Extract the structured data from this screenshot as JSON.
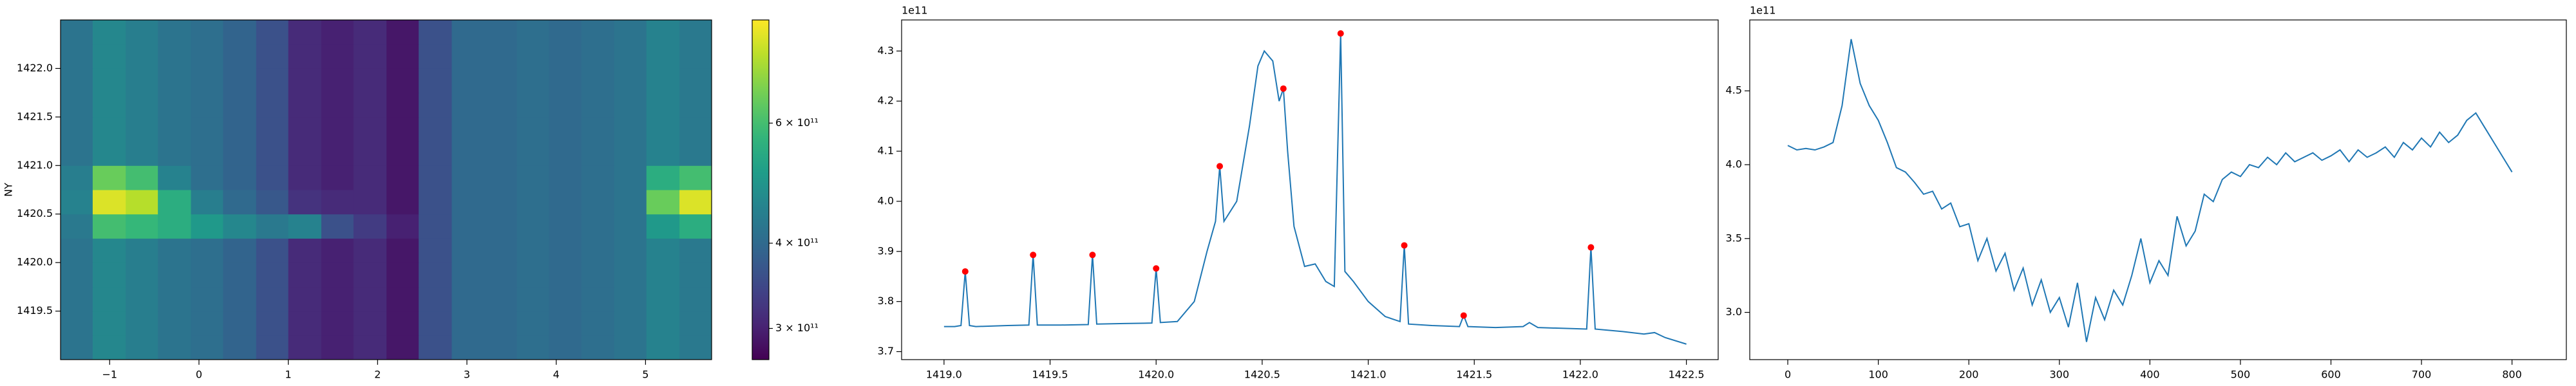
{
  "chart_data": [
    {
      "type": "heatmap",
      "ylabel": "NY",
      "x_edges": [
        -1.55,
        -1.19,
        -0.82,
        -0.46,
        -0.09,
        0.27,
        0.64,
        1.0,
        1.37,
        1.73,
        2.1,
        2.46,
        2.83,
        3.19,
        3.56,
        3.92,
        4.28,
        4.65,
        5.01,
        5.38,
        5.74
      ],
      "y_edges": [
        1419.0,
        1419.25,
        1419.5,
        1419.75,
        1420.0,
        1420.25,
        1420.5,
        1420.75,
        1421.0,
        1421.25,
        1421.5,
        1421.75,
        1422.0,
        1422.25,
        1422.5
      ],
      "z": [
        [
          420000000000.0,
          460000000000.0,
          440000000000.0,
          420000000000.0,
          410000000000.0,
          390000000000.0,
          360000000000.0,
          310000000000.0,
          300000000000.0,
          310000000000.0,
          290000000000.0,
          360000000000.0,
          400000000000.0,
          400000000000.0,
          410000000000.0,
          400000000000.0,
          410000000000.0,
          420000000000.0,
          450000000000.0,
          430000000000.0
        ],
        [
          420000000000.0,
          460000000000.0,
          440000000000.0,
          420000000000.0,
          410000000000.0,
          390000000000.0,
          360000000000.0,
          310000000000.0,
          300000000000.0,
          310000000000.0,
          290000000000.0,
          360000000000.0,
          400000000000.0,
          400000000000.0,
          410000000000.0,
          400000000000.0,
          410000000000.0,
          420000000000.0,
          450000000000.0,
          430000000000.0
        ],
        [
          420000000000.0,
          460000000000.0,
          440000000000.0,
          420000000000.0,
          410000000000.0,
          390000000000.0,
          360000000000.0,
          310000000000.0,
          300000000000.0,
          310000000000.0,
          290000000000.0,
          360000000000.0,
          400000000000.0,
          400000000000.0,
          410000000000.0,
          400000000000.0,
          410000000000.0,
          420000000000.0,
          450000000000.0,
          430000000000.0
        ],
        [
          420000000000.0,
          460000000000.0,
          440000000000.0,
          420000000000.0,
          410000000000.0,
          390000000000.0,
          360000000000.0,
          310000000000.0,
          300000000000.0,
          310000000000.0,
          290000000000.0,
          360000000000.0,
          400000000000.0,
          400000000000.0,
          410000000000.0,
          400000000000.0,
          410000000000.0,
          420000000000.0,
          450000000000.0,
          430000000000.0
        ],
        [
          420000000000.0,
          460000000000.0,
          440000000000.0,
          420000000000.0,
          410000000000.0,
          390000000000.0,
          360000000000.0,
          310000000000.0,
          300000000000.0,
          310000000000.0,
          290000000000.0,
          360000000000.0,
          400000000000.0,
          400000000000.0,
          410000000000.0,
          400000000000.0,
          410000000000.0,
          420000000000.0,
          450000000000.0,
          430000000000.0
        ],
        [
          430000000000.0,
          600000000000.0,
          580000000000.0,
          550000000000.0,
          500000000000.0,
          460000000000.0,
          430000000000.0,
          450000000000.0,
          360000000000.0,
          330000000000.0,
          300000000000.0,
          360000000000.0,
          400000000000.0,
          400000000000.0,
          410000000000.0,
          400000000000.0,
          410000000000.0,
          420000000000.0,
          500000000000.0,
          550000000000.0
        ],
        [
          450000000000.0,
          800000000000.0,
          750000000000.0,
          550000000000.0,
          440000000000.0,
          400000000000.0,
          370000000000.0,
          320000000000.0,
          310000000000.0,
          310000000000.0,
          290000000000.0,
          360000000000.0,
          400000000000.0,
          400000000000.0,
          410000000000.0,
          400000000000.0,
          410000000000.0,
          420000000000.0,
          650000000000.0,
          800000000000.0
        ],
        [
          440000000000.0,
          650000000000.0,
          600000000000.0,
          450000000000.0,
          410000000000.0,
          390000000000.0,
          360000000000.0,
          310000000000.0,
          300000000000.0,
          310000000000.0,
          290000000000.0,
          360000000000.0,
          400000000000.0,
          400000000000.0,
          410000000000.0,
          400000000000.0,
          410000000000.0,
          420000000000.0,
          550000000000.0,
          600000000000.0
        ],
        [
          420000000000.0,
          460000000000.0,
          440000000000.0,
          420000000000.0,
          410000000000.0,
          390000000000.0,
          360000000000.0,
          310000000000.0,
          300000000000.0,
          310000000000.0,
          290000000000.0,
          360000000000.0,
          400000000000.0,
          400000000000.0,
          410000000000.0,
          400000000000.0,
          410000000000.0,
          420000000000.0,
          450000000000.0,
          430000000000.0
        ],
        [
          420000000000.0,
          460000000000.0,
          440000000000.0,
          420000000000.0,
          410000000000.0,
          390000000000.0,
          360000000000.0,
          310000000000.0,
          300000000000.0,
          310000000000.0,
          290000000000.0,
          360000000000.0,
          400000000000.0,
          400000000000.0,
          410000000000.0,
          400000000000.0,
          410000000000.0,
          420000000000.0,
          450000000000.0,
          430000000000.0
        ],
        [
          420000000000.0,
          460000000000.0,
          440000000000.0,
          420000000000.0,
          410000000000.0,
          390000000000.0,
          360000000000.0,
          310000000000.0,
          300000000000.0,
          310000000000.0,
          290000000000.0,
          360000000000.0,
          400000000000.0,
          400000000000.0,
          410000000000.0,
          400000000000.0,
          410000000000.0,
          420000000000.0,
          450000000000.0,
          430000000000.0
        ],
        [
          420000000000.0,
          460000000000.0,
          440000000000.0,
          420000000000.0,
          410000000000.0,
          390000000000.0,
          360000000000.0,
          310000000000.0,
          300000000000.0,
          310000000000.0,
          290000000000.0,
          360000000000.0,
          400000000000.0,
          400000000000.0,
          410000000000.0,
          400000000000.0,
          410000000000.0,
          420000000000.0,
          450000000000.0,
          430000000000.0
        ],
        [
          420000000000.0,
          460000000000.0,
          440000000000.0,
          420000000000.0,
          410000000000.0,
          390000000000.0,
          360000000000.0,
          310000000000.0,
          300000000000.0,
          310000000000.0,
          290000000000.0,
          360000000000.0,
          400000000000.0,
          400000000000.0,
          410000000000.0,
          400000000000.0,
          410000000000.0,
          420000000000.0,
          450000000000.0,
          430000000000.0
        ],
        [
          420000000000.0,
          460000000000.0,
          440000000000.0,
          420000000000.0,
          410000000000.0,
          390000000000.0,
          360000000000.0,
          310000000000.0,
          300000000000.0,
          310000000000.0,
          290000000000.0,
          360000000000.0,
          400000000000.0,
          400000000000.0,
          410000000000.0,
          400000000000.0,
          410000000000.0,
          420000000000.0,
          450000000000.0,
          430000000000.0
        ]
      ],
      "colormap": "viridis",
      "xlim": [
        -1.55,
        5.74
      ],
      "ylim": [
        1419.0,
        1422.5
      ],
      "xticks": [
        {
          "value": -1,
          "label": "−1"
        },
        0,
        1,
        2,
        3,
        4,
        5
      ],
      "yticks": [
        1419.5,
        {
          "value": 1420,
          "label": "1420.0"
        },
        1420.5,
        {
          "value": 1421,
          "label": "1421.0"
        },
        1421.5,
        {
          "value": 1422,
          "label": "1422.0"
        }
      ],
      "colorbar": {
        "scale": "log",
        "lim": [
          270000000000.0,
          850000000000.0
        ],
        "ticks": [
          {
            "value": 300000000000.0,
            "label": "3 × 10¹¹"
          },
          {
            "value": 400000000000.0,
            "label": "4 × 10¹¹"
          },
          {
            "value": 600000000000.0,
            "label": "6 × 10¹¹"
          }
        ]
      }
    },
    {
      "type": "line",
      "y_offset_label": "1e11",
      "series": [
        {
          "color": "#1f77b4",
          "marker": "none",
          "x": [
            1419.0,
            1419.05,
            1419.08,
            1419.1,
            1419.12,
            1419.15,
            1419.3,
            1419.4,
            1419.42,
            1419.44,
            1419.55,
            1419.68,
            1419.7,
            1419.72,
            1419.85,
            1419.98,
            1420.0,
            1420.02,
            1420.1,
            1420.18,
            1420.24,
            1420.28,
            1420.3,
            1420.32,
            1420.38,
            1420.44,
            1420.48,
            1420.51,
            1420.55,
            1420.58,
            1420.6,
            1420.62,
            1420.65,
            1420.7,
            1420.75,
            1420.8,
            1420.84,
            1420.87,
            1420.89,
            1420.93,
            1421.0,
            1421.08,
            1421.15,
            1421.17,
            1421.19,
            1421.3,
            1421.43,
            1421.45,
            1421.47,
            1421.6,
            1421.73,
            1421.76,
            1421.8,
            1422.03,
            1422.05,
            1422.07,
            1422.2,
            1422.3,
            1422.35,
            1422.4,
            1422.5
          ],
          "values": [
            3.75,
            3.75,
            3.752,
            3.86,
            3.752,
            3.75,
            3.752,
            3.753,
            3.893,
            3.753,
            3.753,
            3.754,
            3.893,
            3.755,
            3.756,
            3.757,
            3.866,
            3.758,
            3.76,
            3.8,
            3.9,
            3.96,
            4.07,
            3.96,
            4.0,
            4.15,
            4.27,
            4.3,
            4.28,
            4.2,
            4.225,
            4.1,
            3.95,
            3.87,
            3.875,
            3.84,
            3.83,
            4.335,
            3.86,
            3.84,
            3.8,
            3.77,
            3.76,
            3.912,
            3.755,
            3.752,
            3.75,
            3.772,
            3.75,
            3.748,
            3.75,
            3.758,
            3.748,
            3.745,
            3.908,
            3.745,
            3.74,
            3.735,
            3.738,
            3.728,
            3.715
          ]
        },
        {
          "color": "#ff0000",
          "marker": "dot",
          "x": [
            1419.1,
            1419.42,
            1419.7,
            1420.0,
            1420.3,
            1420.6,
            1420.87,
            1421.17,
            1421.45,
            1422.05
          ],
          "values": [
            3.86,
            3.893,
            3.893,
            3.866,
            4.07,
            4.225,
            4.335,
            3.912,
            3.772,
            3.908
          ]
        }
      ],
      "xlim": [
        1418.8,
        1422.65
      ],
      "ylim": [
        3.684,
        4.362
      ],
      "xticks": [
        {
          "value": 1419,
          "label": "1419.0"
        },
        1419.5,
        {
          "value": 1420,
          "label": "1420.0"
        },
        1420.5,
        {
          "value": 1421,
          "label": "1421.0"
        },
        1421.5,
        {
          "value": 1422,
          "label": "1422.0"
        },
        1422.5
      ],
      "yticks": [
        3.7,
        3.8,
        3.9,
        {
          "value": 4,
          "label": "4.0"
        },
        4.1,
        4.2,
        4.3
      ]
    },
    {
      "type": "line",
      "y_offset_label": "1e11",
      "series": [
        {
          "color": "#1f77b4",
          "marker": "none",
          "x": [
            0,
            10,
            20,
            30,
            40,
            50,
            60,
            70,
            80,
            90,
            100,
            110,
            120,
            130,
            140,
            150,
            160,
            170,
            180,
            190,
            200,
            210,
            220,
            230,
            240,
            250,
            260,
            270,
            280,
            290,
            300,
            310,
            320,
            330,
            340,
            350,
            360,
            370,
            380,
            390,
            400,
            410,
            420,
            430,
            440,
            450,
            460,
            470,
            480,
            490,
            500,
            510,
            520,
            530,
            540,
            550,
            560,
            570,
            580,
            590,
            600,
            610,
            620,
            630,
            640,
            650,
            660,
            670,
            680,
            690,
            700,
            710,
            720,
            730,
            740,
            750,
            760,
            770,
            780,
            790,
            800
          ],
          "values": [
            4.13,
            4.1,
            4.11,
            4.1,
            4.12,
            4.15,
            4.4,
            4.85,
            4.55,
            4.4,
            4.3,
            4.15,
            3.98,
            3.95,
            3.88,
            3.8,
            3.82,
            3.7,
            3.74,
            3.58,
            3.6,
            3.35,
            3.5,
            3.28,
            3.4,
            3.15,
            3.3,
            3.05,
            3.22,
            3.0,
            3.1,
            2.9,
            3.2,
            2.8,
            3.1,
            2.95,
            3.15,
            3.05,
            3.25,
            3.5,
            3.2,
            3.35,
            3.25,
            3.65,
            3.45,
            3.55,
            3.8,
            3.75,
            3.9,
            3.95,
            3.92,
            4.0,
            3.98,
            4.05,
            4.0,
            4.08,
            4.02,
            4.05,
            4.08,
            4.03,
            4.06,
            4.1,
            4.02,
            4.1,
            4.05,
            4.08,
            4.12,
            4.05,
            4.15,
            4.1,
            4.18,
            4.12,
            4.22,
            4.15,
            4.2,
            4.3,
            4.35,
            4.25,
            4.15,
            4.05,
            3.95
          ]
        }
      ],
      "xlim": [
        -42,
        860
      ],
      "ylim": [
        2.68,
        4.98
      ],
      "xticks": [
        0,
        100,
        200,
        300,
        400,
        500,
        600,
        700,
        800
      ],
      "yticks": [
        {
          "value": 3,
          "label": "3.0"
        },
        3.5,
        {
          "value": 4,
          "label": "4.0"
        },
        4.5
      ]
    }
  ]
}
